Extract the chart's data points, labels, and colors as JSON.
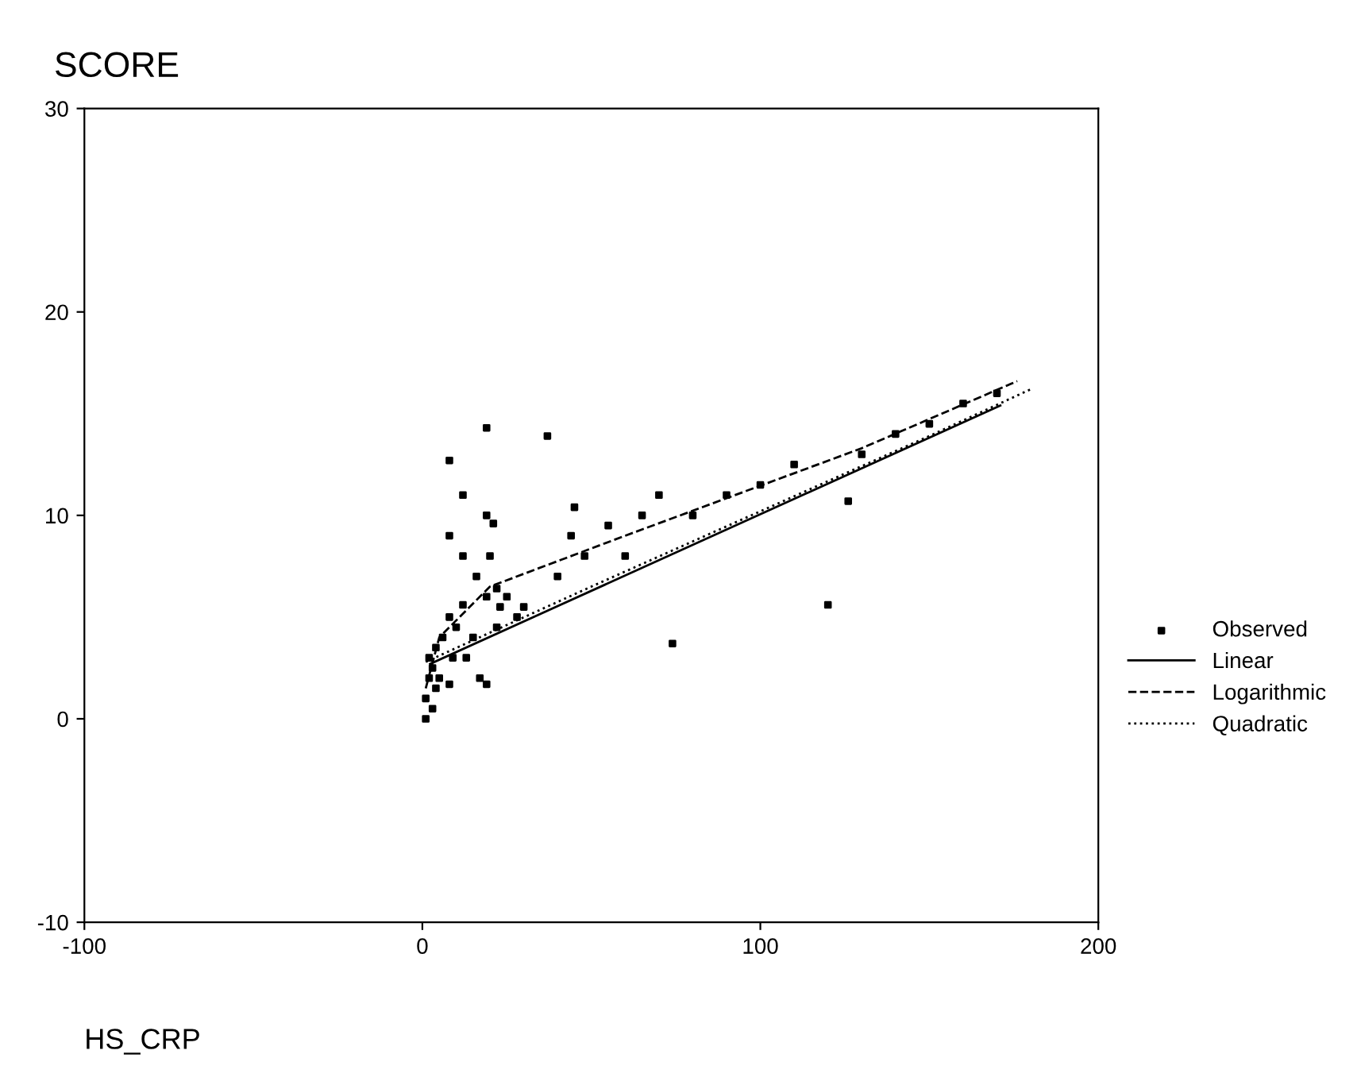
{
  "chart_data": {
    "type": "scatter",
    "ylabel": "SCORE",
    "xlabel": "HS_CRP",
    "xlim": [
      -100,
      200
    ],
    "xticks": [
      -100,
      0,
      100,
      200
    ],
    "ylim": [
      -10,
      30
    ],
    "yticks": [
      -10,
      0,
      10,
      20,
      30
    ],
    "grid": false,
    "legend": "right",
    "series": [
      {
        "name": "Observed",
        "marker": "square",
        "color": "#000000",
        "x": [
          1,
          1,
          2,
          2,
          3,
          3,
          4,
          4,
          5,
          6,
          8,
          8,
          8,
          8,
          9,
          10,
          12,
          12,
          12,
          13,
          15,
          16,
          17,
          19,
          19,
          19,
          19,
          20,
          21,
          22,
          22,
          23,
          25,
          28,
          30,
          37,
          40,
          44,
          45,
          48,
          55,
          60,
          65,
          70,
          74,
          80,
          90,
          100,
          110,
          120,
          126,
          130,
          140,
          150,
          160,
          170
        ],
        "values": [
          0,
          1,
          2,
          3,
          0.5,
          2.5,
          1.5,
          3.5,
          2,
          4,
          12.7,
          9,
          5,
          1.7,
          3,
          4.5,
          11,
          8,
          5.6,
          3,
          4,
          7,
          2,
          14.3,
          10,
          6,
          1.7,
          8,
          9.6,
          6.4,
          4.5,
          5.5,
          6,
          5,
          5.5,
          13.9,
          7,
          9,
          10.4,
          8,
          9.5,
          8,
          10,
          11,
          3.7,
          10,
          11,
          11.5,
          12.5,
          5.6,
          10.7,
          13,
          14,
          14.5,
          15.5,
          16
        ]
      },
      {
        "name": "Linear",
        "type": "line",
        "line_style": "solid",
        "color": "#000000",
        "x": [
          2.3,
          171
        ],
        "values": [
          2.7,
          15.4
        ]
      },
      {
        "name": "Logarithmic",
        "type": "line",
        "line_style": "dashed",
        "color": "#000000",
        "x": [
          1,
          5,
          20,
          60,
          130,
          176
        ],
        "values": [
          1.5,
          4.0,
          6.5,
          9.0,
          13.3,
          16.6
        ]
      },
      {
        "name": "Quadratic",
        "type": "line",
        "line_style": "dotted",
        "color": "#000000",
        "x": [
          1,
          50,
          100,
          150,
          180
        ],
        "values": [
          2.8,
          6.5,
          10.2,
          13.9,
          16.2
        ]
      }
    ]
  }
}
